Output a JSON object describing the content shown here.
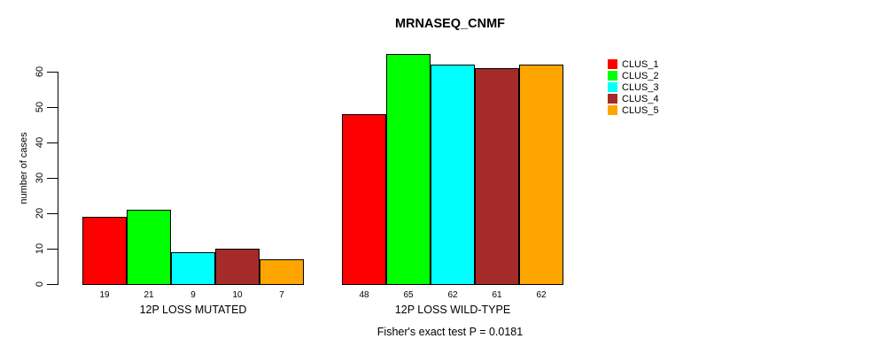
{
  "title": "MRNASEQ_CNMF",
  "subtitle": "Fisher's exact test P = 0.0181",
  "y_axis": {
    "label": "number of cases",
    "ticks": [
      "0",
      "10",
      "20",
      "30",
      "40",
      "50",
      "60"
    ]
  },
  "legend": {
    "items": [
      {
        "label": "CLUS_1",
        "color": "#FF0000"
      },
      {
        "label": "CLUS_2",
        "color": "#00FF00"
      },
      {
        "label": "CLUS_3",
        "color": "#00FFFF"
      },
      {
        "label": "CLUS_4",
        "color": "#A52A2A"
      },
      {
        "label": "CLUS_5",
        "color": "#FFA500"
      }
    ]
  },
  "chart_data": {
    "type": "bar",
    "title": "MRNASEQ_CNMF",
    "xlabel": "",
    "ylabel": "number of cases",
    "ylim": [
      0,
      65
    ],
    "yticks": [
      0,
      10,
      20,
      30,
      40,
      50,
      60
    ],
    "grid": false,
    "legend_position": "right",
    "series": [
      "CLUS_1",
      "CLUS_2",
      "CLUS_3",
      "CLUS_4",
      "CLUS_5"
    ],
    "colors": [
      "#FF0000",
      "#00FF00",
      "#00FFFF",
      "#A52A2A",
      "#FFA500"
    ],
    "categories": [
      "12P LOSS MUTATED",
      "12P LOSS WILD-TYPE"
    ],
    "groups": [
      {
        "label": "12P LOSS MUTATED",
        "values": [
          19,
          21,
          9,
          10,
          7
        ]
      },
      {
        "label": "12P LOSS WILD-TYPE",
        "values": [
          48,
          65,
          62,
          61,
          62
        ]
      }
    ],
    "bar_value_labels_shown": true,
    "annotation": "Fisher's exact test P = 0.0181"
  }
}
